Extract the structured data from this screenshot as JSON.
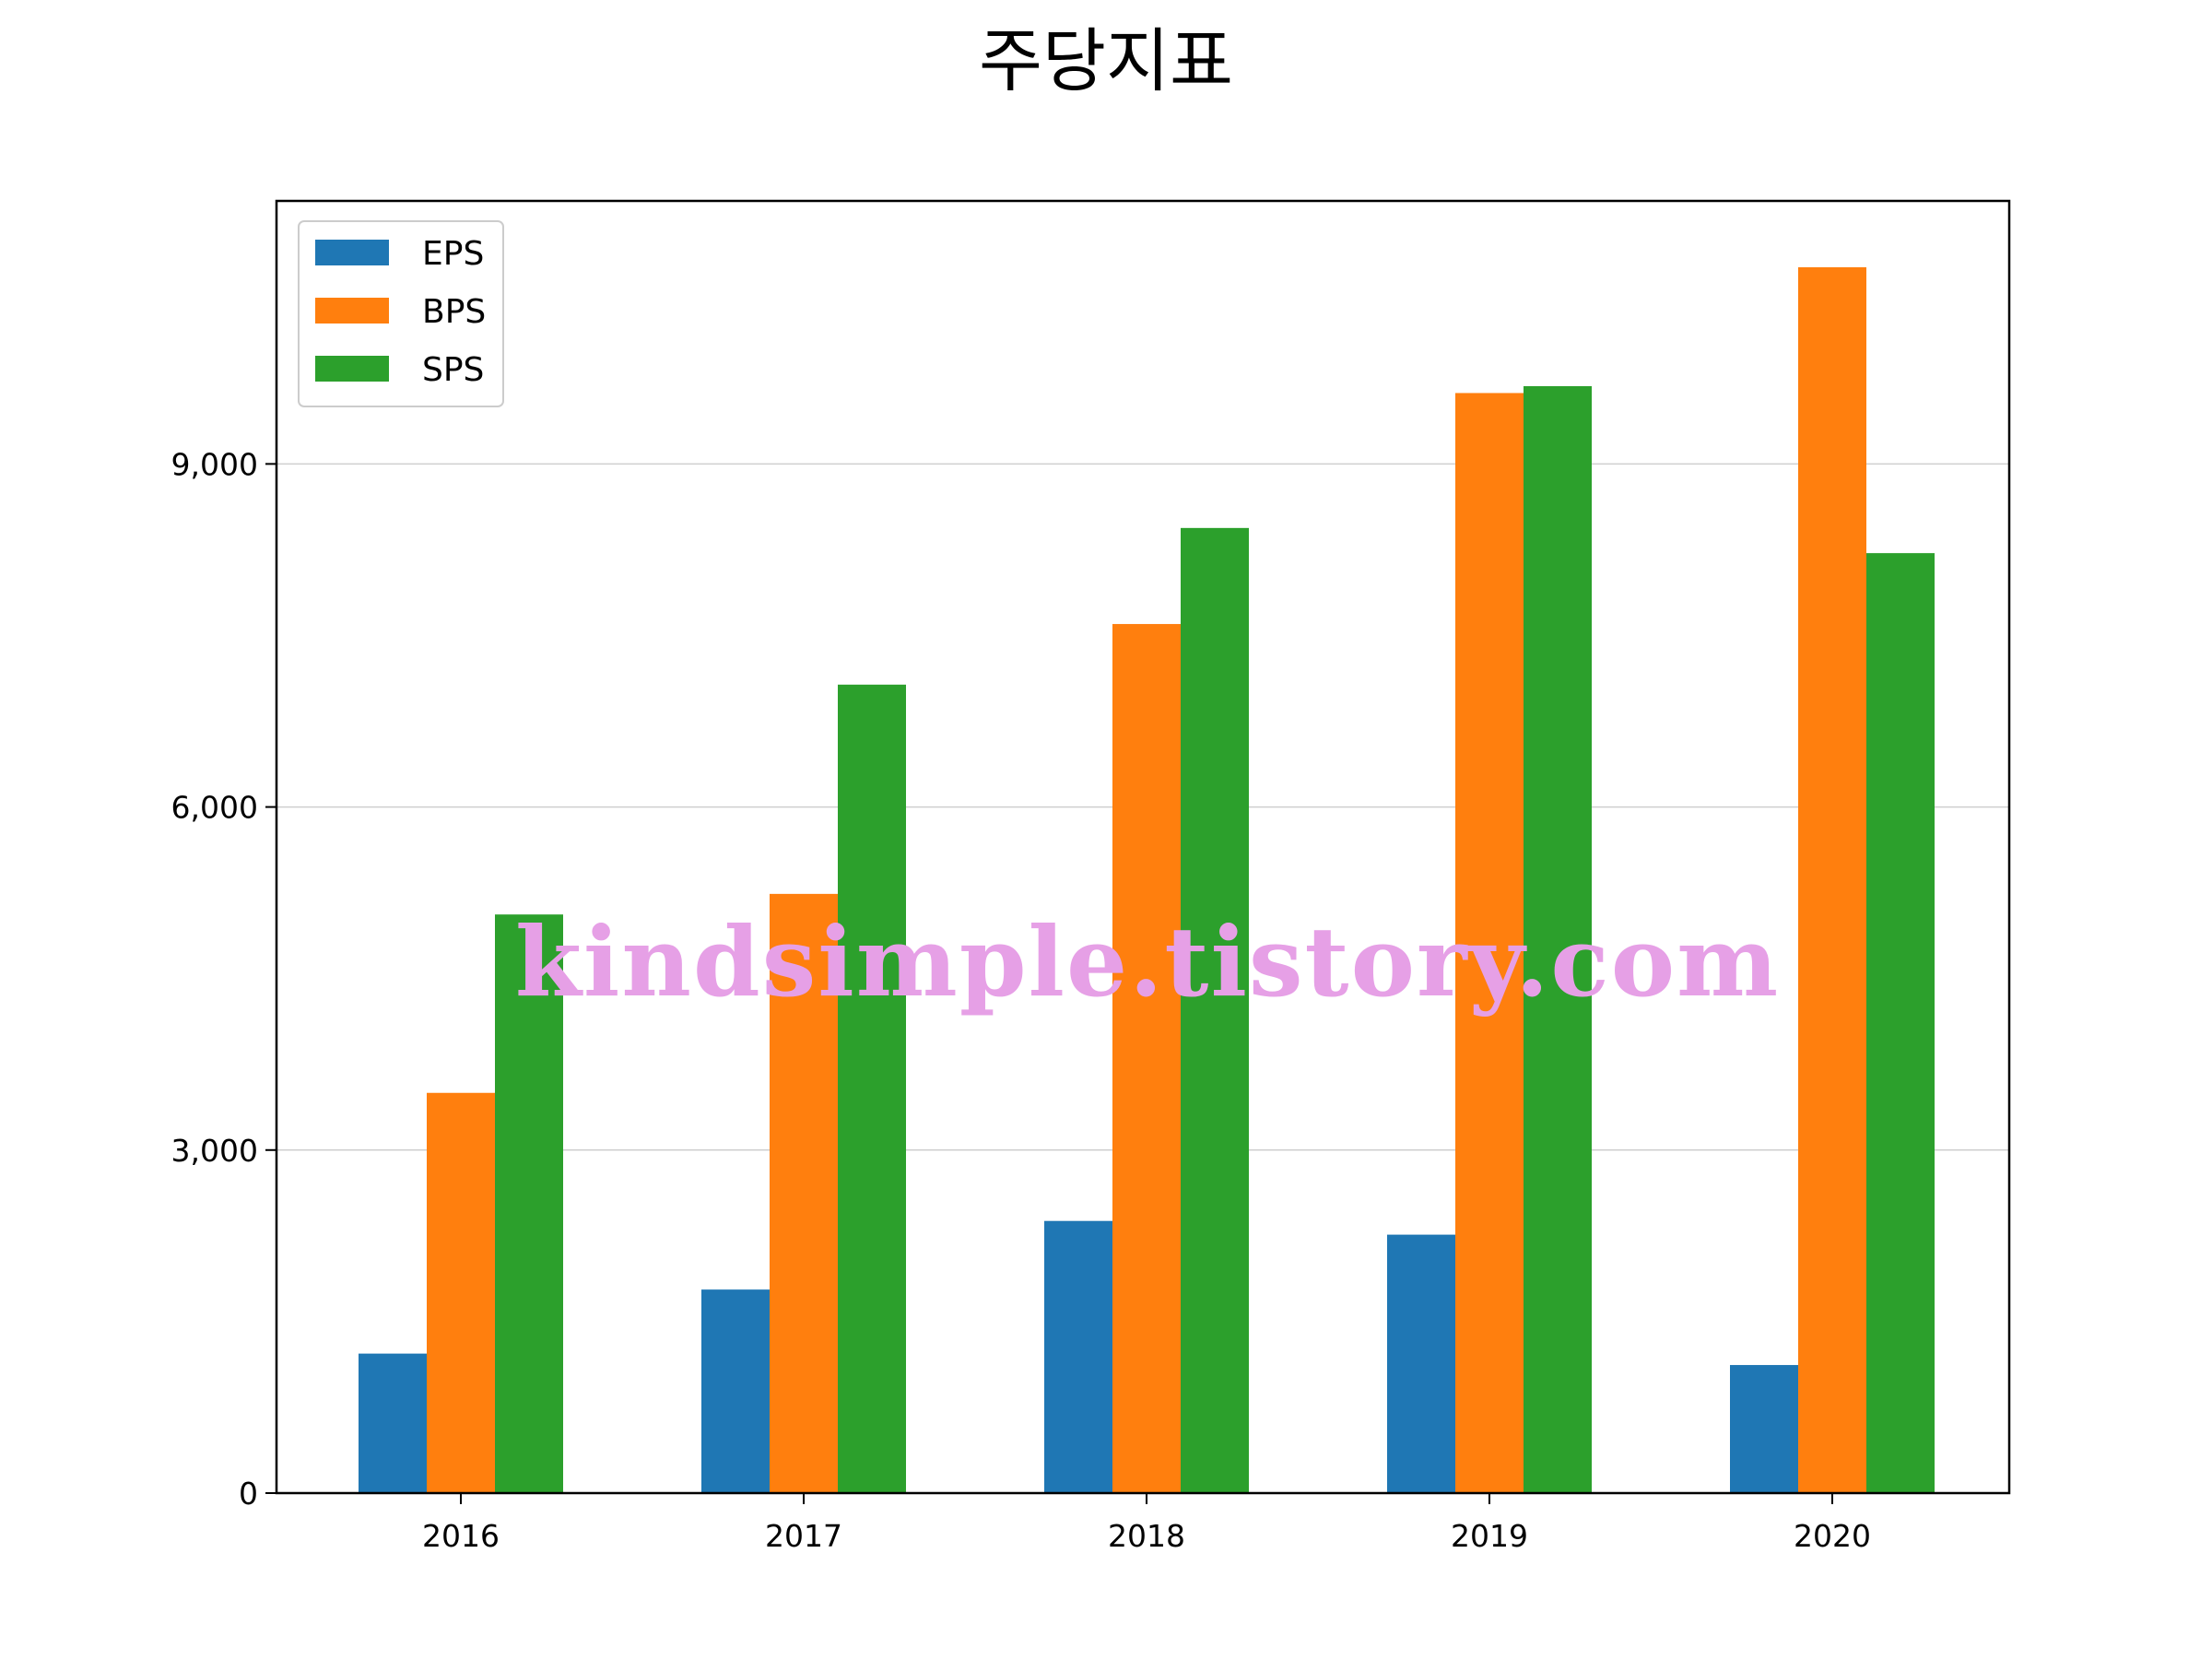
{
  "chart_data": {
    "type": "bar",
    "title": "주당지표",
    "xlabel": "",
    "ylabel": "",
    "categories": [
      "2016",
      "2017",
      "2018",
      "2019",
      "2020"
    ],
    "series": [
      {
        "name": "EPS",
        "color": "#1f77b4",
        "values": [
          1220,
          1780,
          2380,
          2260,
          1120
        ]
      },
      {
        "name": "BPS",
        "color": "#ff7f0e",
        "values": [
          3500,
          5240,
          7600,
          9620,
          10720
        ]
      },
      {
        "name": "SPS",
        "color": "#2ca02c",
        "values": [
          5060,
          7070,
          8440,
          9680,
          8220
        ]
      }
    ],
    "ylim": [
      0,
      11300
    ],
    "yticks": [
      0,
      3000,
      6000,
      9000
    ],
    "ytick_labels": [
      "0",
      "3,000",
      "6,000",
      "9,000"
    ],
    "grid": "horizontal",
    "legend_position": "top-left",
    "watermark": "kindsimple.tistory.com"
  }
}
